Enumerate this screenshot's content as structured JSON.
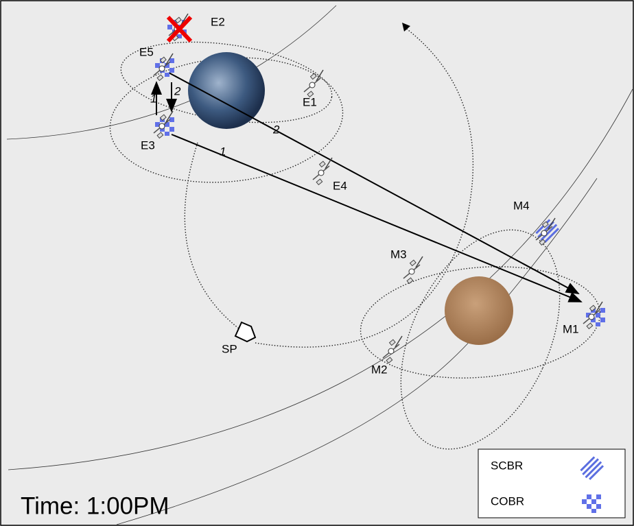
{
  "nodes": [
    {
      "label": "E1"
    },
    {
      "label": "E2"
    },
    {
      "label": "E3"
    },
    {
      "label": "E4"
    },
    {
      "label": "E5"
    },
    {
      "label": "M1"
    },
    {
      "label": "M2"
    },
    {
      "label": "M3"
    },
    {
      "label": "M4"
    },
    {
      "label": "SP"
    }
  ],
  "links": [
    {
      "label": "2"
    },
    {
      "label": "1"
    },
    {
      "label": "1"
    },
    {
      "label": "2"
    }
  ],
  "legend": [
    {
      "label": "SCBR"
    },
    {
      "label": "COBR"
    }
  ],
  "time": "Time: 1:00PM"
}
